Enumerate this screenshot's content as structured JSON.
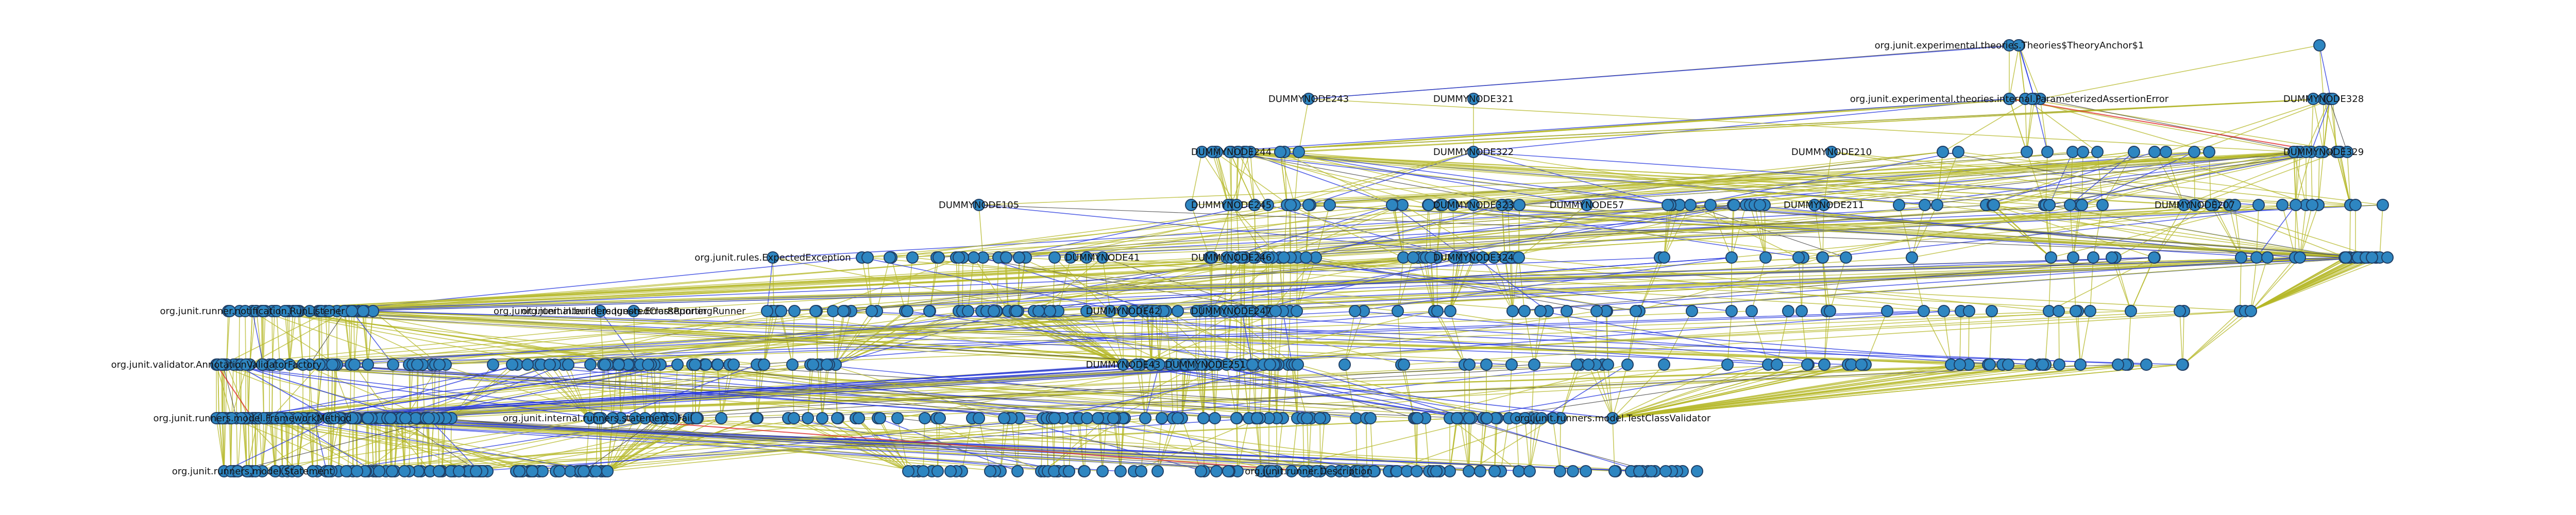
{
  "colors": {
    "node": "#2e86c1",
    "edge_olive": "#b5b82a",
    "edge_blue": "#2233dd",
    "edge_red": "#dd2222",
    "edge_dark": "#333333"
  },
  "layers": [
    {
      "labels": [
        "org.junit.experimental.theories.Theories$TheoryAnchor$1"
      ],
      "extra_nodes": 3
    },
    {
      "labels": [
        "DUMMYNODE243",
        "DUMMYNODE321",
        "org.junit.experimental.theories.internal.ParameterizedAssertionError",
        "DUMMYNODE328"
      ],
      "extra_nodes": 10
    },
    {
      "labels": [
        "DUMMYNODE244",
        "DUMMYNODE322",
        "DUMMYNODE210",
        "DUMMYNODE329"
      ],
      "extra_nodes": 40
    },
    {
      "labels": [
        "DUMMYNODE105",
        "DUMMYNODE245",
        "DUMMYNODE323",
        "DUMMYNODE57",
        "DUMMYNODE211",
        "DUMMYNODE207"
      ],
      "extra_nodes": 70
    },
    {
      "labels": [
        "org.junit.rules.ExpectedException",
        "DUMMYNODE41",
        "DUMMYNODE246",
        "DUMMYNODE324"
      ],
      "extra_nodes": 110
    },
    {
      "labels": [
        "org.junit.runner.notification.RunListener",
        "org.junit.internal.requests.ErrorReportingRunner",
        "org.junit.internal.builders.IgnoredClassRunner",
        "DUMMYNODE42",
        "DUMMYNODE247"
      ],
      "extra_nodes": 160
    },
    {
      "labels": [
        "org.junit.validator.AnnotationValidatorFactory",
        "DUMMYNODE43",
        "DUMMYNODE251"
      ],
      "extra_nodes": 190
    },
    {
      "labels": [
        "org.junit.runners.model.FrameworkMethod",
        "org.junit.internal.runners.statements.Fail",
        "org.junit.runners.model.TestClassValidator"
      ],
      "extra_nodes": 230
    },
    {
      "labels": [
        "org.junit.runners.model.Statement",
        "org.junit.runner.Description"
      ],
      "extra_nodes": 190
    }
  ]
}
